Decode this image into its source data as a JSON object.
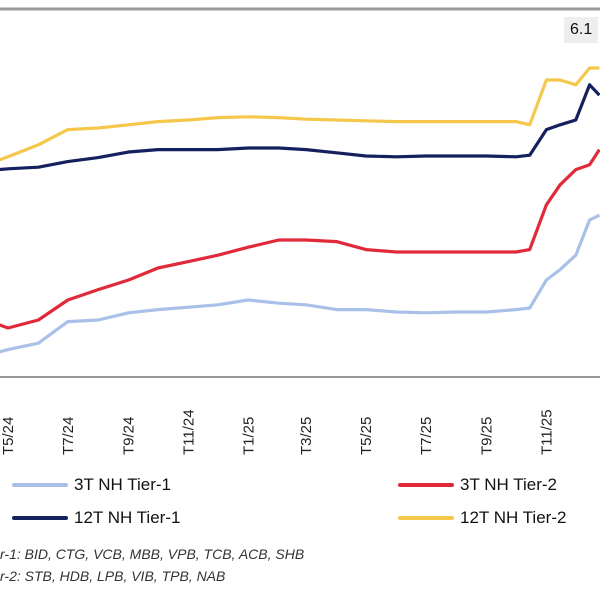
{
  "chart_data": {
    "type": "line",
    "title": "",
    "xlabel": "",
    "ylabel": "",
    "x": [
      "2024-04-22",
      "2024-05-01",
      "2024-06-01",
      "2024-07-01",
      "2024-08-01",
      "2024-09-01",
      "2024-10-01",
      "2024-11-01",
      "2024-12-01",
      "2025-01-01",
      "2025-02-01",
      "2025-03-01",
      "2025-04-01",
      "2025-05-01",
      "2025-06-01",
      "2025-07-01",
      "2025-08-01",
      "2025-09-01",
      "2025-10-01",
      "2025-10-15",
      "2025-11-01",
      "2025-11-15",
      "2025-12-01",
      "2025-12-15",
      "2025-12-25"
    ],
    "x_tick_labels": [
      {
        "label": "T5/24",
        "date": "2024-05-01"
      },
      {
        "label": "T7/24",
        "date": "2024-07-01"
      },
      {
        "label": "T9/24",
        "date": "2024-09-01"
      },
      {
        "label": "T11/24",
        "date": "2024-11-01"
      },
      {
        "label": "T1/25",
        "date": "2025-01-01"
      },
      {
        "label": "T3/25",
        "date": "2025-03-01"
      },
      {
        "label": "T5/25",
        "date": "2025-05-01"
      },
      {
        "label": "T7/25",
        "date": "2025-07-01"
      },
      {
        "label": "T9/25",
        "date": "2025-09-01"
      },
      {
        "label": "T11/25",
        "date": "2025-11-01"
      }
    ],
    "y_axis_shown": false,
    "grid": false,
    "legend_placement": "bottom",
    "series": [
      {
        "name": "3T NH Tier-1",
        "color": "#a9c1e8",
        "values": [
          2.55,
          2.58,
          2.66,
          2.93,
          2.95,
          3.04,
          3.08,
          3.11,
          3.14,
          3.2,
          3.16,
          3.14,
          3.08,
          3.08,
          3.05,
          3.04,
          3.05,
          3.05,
          3.08,
          3.1,
          3.45,
          3.58,
          3.76,
          4.2,
          4.26
        ]
      },
      {
        "name": "3T NH Tier-2",
        "color": "#e02a3a",
        "values": [
          2.89,
          2.85,
          2.95,
          3.2,
          3.33,
          3.45,
          3.6,
          3.68,
          3.76,
          3.86,
          3.95,
          3.95,
          3.93,
          3.83,
          3.8,
          3.8,
          3.8,
          3.8,
          3.8,
          3.83,
          4.39,
          4.64,
          4.83,
          4.89,
          5.08
        ]
      },
      {
        "name": "12T NH Tier-1",
        "color": "#14215e",
        "values": [
          4.83,
          4.84,
          4.86,
          4.93,
          4.98,
          5.05,
          5.08,
          5.08,
          5.08,
          5.1,
          5.1,
          5.08,
          5.04,
          5.0,
          4.99,
          5.0,
          5.0,
          5.0,
          4.99,
          5.01,
          5.33,
          5.39,
          5.45,
          5.89,
          5.76
        ]
      },
      {
        "name": "12T NH Tier-2",
        "color": "#f5c84c",
        "values": [
          4.95,
          4.99,
          5.14,
          5.33,
          5.35,
          5.39,
          5.43,
          5.45,
          5.48,
          5.49,
          5.48,
          5.46,
          5.45,
          5.44,
          5.43,
          5.43,
          5.43,
          5.43,
          5.43,
          5.39,
          5.95,
          5.95,
          5.89,
          6.1,
          6.1
        ]
      }
    ],
    "annotations": [
      {
        "text": "6.1",
        "series": "12T NH Tier-2",
        "date": "2025-12-25"
      }
    ]
  },
  "notes": [
    "r-1: BID, CTG, VCB, MBB, VPB, TCB, ACB, SHB",
    "r-2: STB, HDB, LPB, VIB, TPB, NAB"
  ]
}
